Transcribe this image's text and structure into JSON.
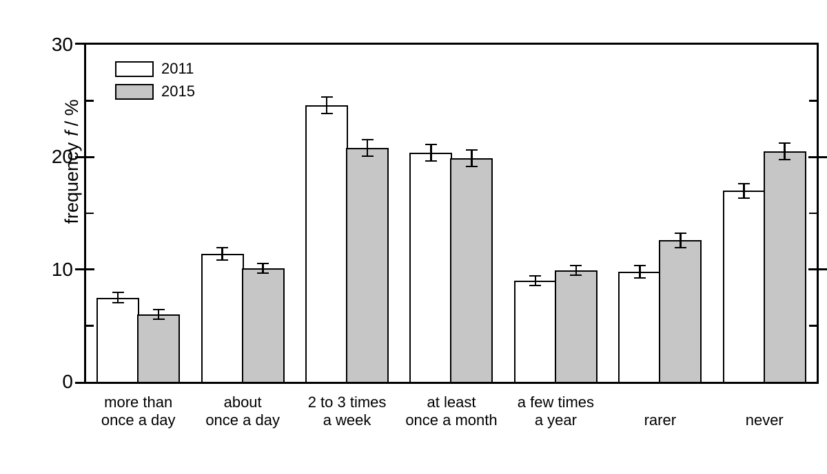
{
  "chart_data": {
    "type": "bar",
    "title": "",
    "ylabel_prefix": "frequency",
    "ylabel_symbol": "f",
    "ylabel_suffix": "/ %",
    "ylim": [
      0,
      30
    ],
    "yticks_major": [
      0,
      10,
      20,
      30
    ],
    "yticks_minor": [
      5,
      15,
      25
    ],
    "grid": false,
    "legend_position": "top-left-inside",
    "axis_color": "#000000",
    "background_color": "#ffffff",
    "categories": [
      "more than once a day",
      "about once a day",
      "2 to 3 times a week",
      "at least once a month",
      "a few times a year",
      "rarer",
      "never"
    ],
    "category_lines": [
      [
        "more than",
        "once a day"
      ],
      [
        "about",
        "once a day"
      ],
      [
        "2 to 3 times",
        "a week"
      ],
      [
        "at least",
        "once a month"
      ],
      [
        "a few times",
        "a year"
      ],
      [
        "rarer"
      ],
      [
        "never"
      ]
    ],
    "series": [
      {
        "name": "2011",
        "color": "#ffffff",
        "values": [
          7.5,
          11.4,
          24.6,
          20.4,
          9.0,
          9.8,
          17.0
        ],
        "errors": [
          0.5,
          0.6,
          0.8,
          0.8,
          0.5,
          0.6,
          0.7
        ]
      },
      {
        "name": "2015",
        "color": "#c6c6c6",
        "values": [
          6.0,
          10.1,
          20.8,
          19.9,
          9.9,
          12.6,
          20.5
        ],
        "errors": [
          0.5,
          0.5,
          0.8,
          0.8,
          0.5,
          0.7,
          0.8
        ]
      }
    ]
  }
}
